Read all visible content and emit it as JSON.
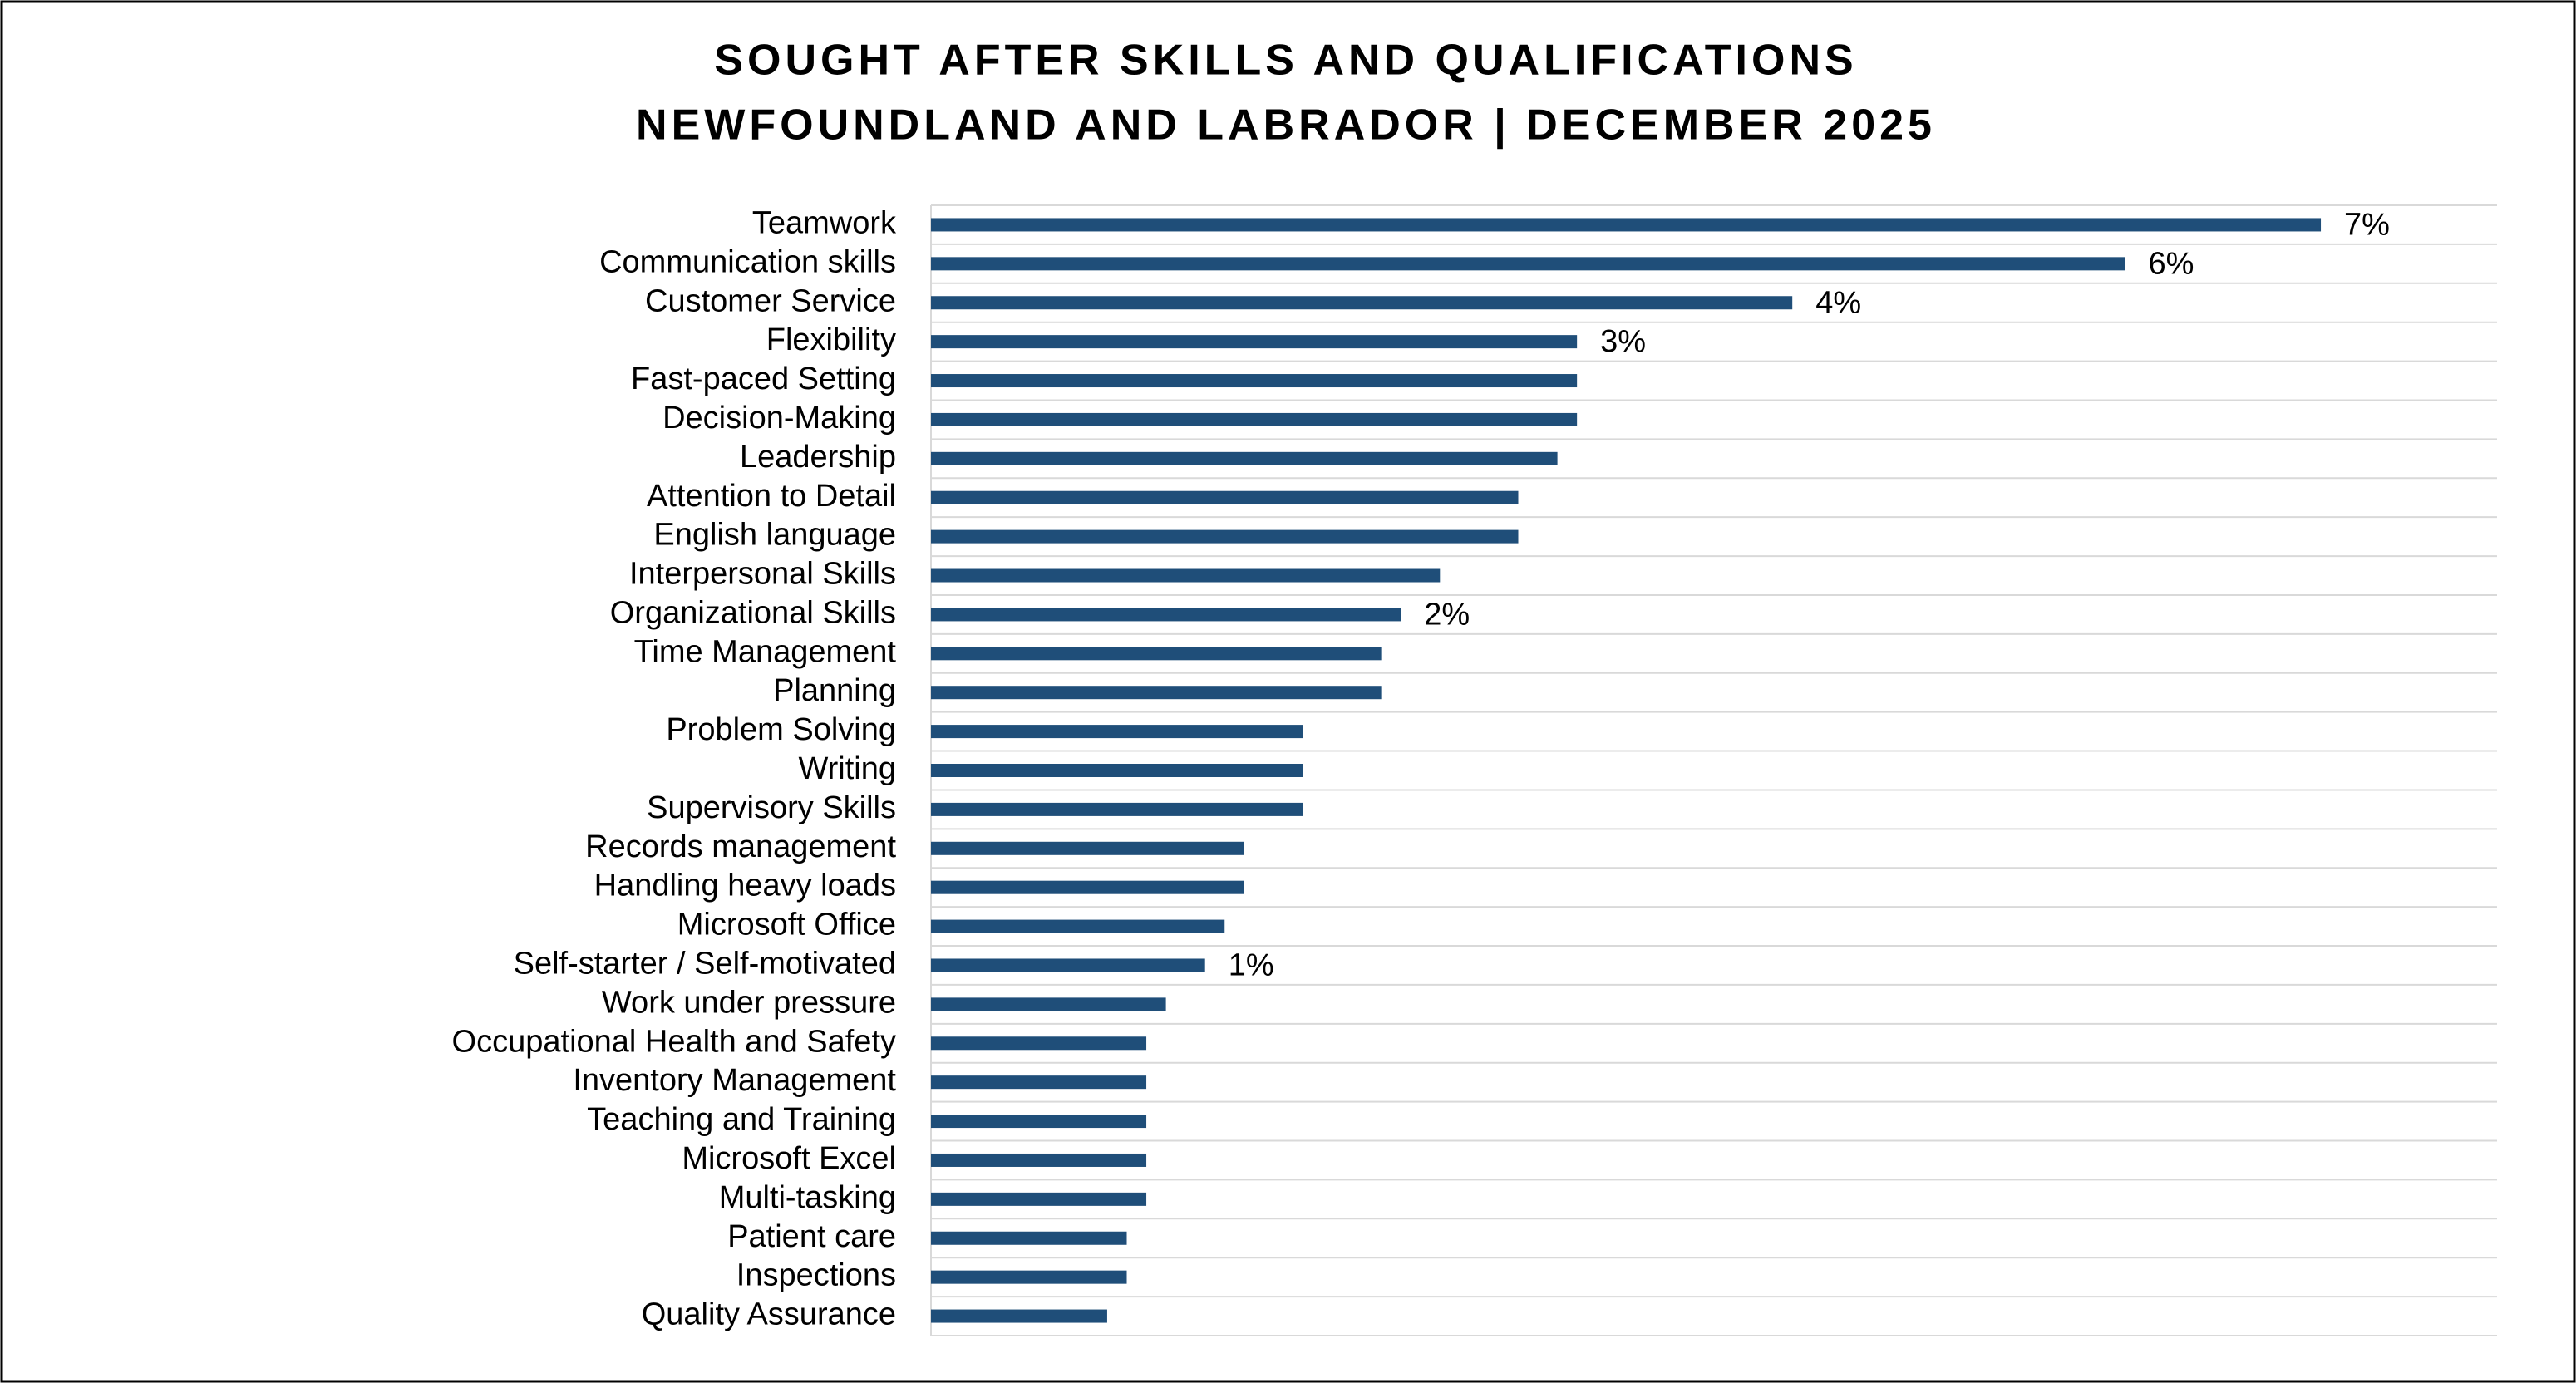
{
  "chart_data": {
    "type": "bar",
    "orientation": "horizontal",
    "title": "SOUGHT AFTER SKILLS AND QUALIFICATIONS",
    "subtitle": "NEWFOUNDLAND AND LABRADOR | DECEMBER 2025",
    "categories": [
      "Teamwork",
      "Communication skills",
      "Customer Service",
      "Flexibility",
      "Fast-paced Setting",
      "Decision-Making",
      "Leadership",
      "Attention to Detail",
      "English language",
      "Interpersonal Skills",
      "Organizational Skills",
      "Time Management",
      "Planning",
      "Problem Solving",
      "Writing",
      "Supervisory Skills",
      "Records management",
      "Handling heavy loads",
      "Microsoft Office",
      "Self-starter / Self-motivated",
      "Work under pressure",
      "Occupational Health and Safety",
      "Inventory Management",
      "Teaching and Training",
      "Microsoft Excel",
      "Multi-tasking",
      "Patient care",
      "Inspections",
      "Quality Assurance"
    ],
    "values": [
      7.1,
      6.1,
      4.4,
      3.3,
      3.3,
      3.3,
      3.2,
      3.0,
      3.0,
      2.6,
      2.4,
      2.3,
      2.3,
      1.9,
      1.9,
      1.9,
      1.6,
      1.6,
      1.5,
      1.4,
      1.2,
      1.1,
      1.1,
      1.1,
      1.1,
      1.1,
      1.0,
      1.0,
      0.9
    ],
    "value_labels": [
      "7%",
      "6%",
      "4%",
      "3%",
      null,
      null,
      null,
      null,
      null,
      null,
      "2%",
      null,
      null,
      null,
      null,
      null,
      null,
      null,
      null,
      "1%",
      null,
      null,
      null,
      null,
      null,
      null,
      null,
      null,
      null
    ],
    "color": "#1f4e79",
    "xlim": [
      0,
      8
    ],
    "grid": true
  }
}
